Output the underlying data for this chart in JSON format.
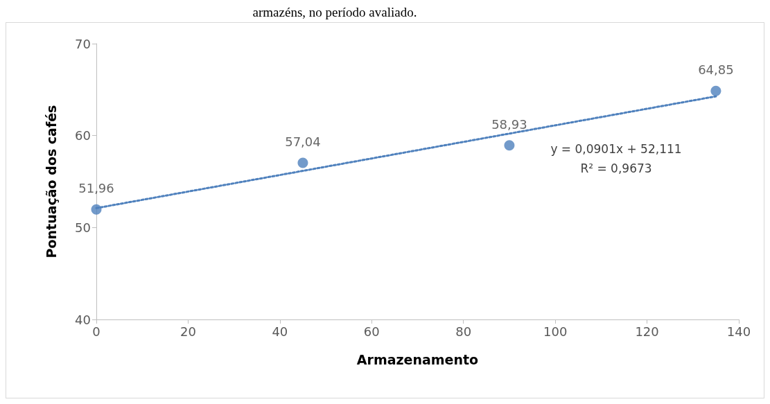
{
  "chart_data": {
    "type": "scatter",
    "xlabel": "Armazenamento",
    "ylabel": "Pontuação dos cafés",
    "annotations": [
      "armazéns, no período avaliado.",
      "y = 0,0901x + 52,111\nR² = 0,9673"
    ],
    "x": [
      0,
      45,
      90,
      135
    ],
    "series": [
      {
        "color": "#4f81bd",
        "marker": "circle",
        "values": [
          51.96,
          57.04,
          58.93,
          64.85
        ],
        "value_labels": [
          "51,96",
          "57,04",
          "58,93",
          "64,85"
        ]
      },
      {
        "type": "line",
        "color": "#4f81bd",
        "x": [
          0,
          135
        ],
        "values": [
          52.11,
          64.27
        ],
        "line_style": "dotted"
      }
    ],
    "xlim": [
      0,
      140
    ],
    "xticks": [
      0,
      20,
      40,
      60,
      80,
      100,
      120,
      140
    ],
    "ylim": [
      40,
      70
    ],
    "yticks": [
      40,
      50,
      60,
      70
    ],
    "grid": false
  }
}
